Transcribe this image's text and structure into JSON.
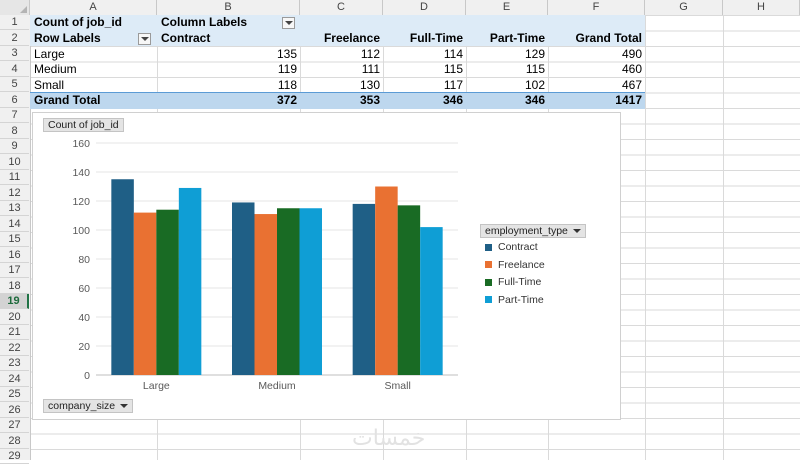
{
  "columns": [
    "A",
    "B",
    "C",
    "D",
    "E",
    "F",
    "G",
    "H"
  ],
  "rows": [
    "1",
    "2",
    "3",
    "4",
    "5",
    "6",
    "7",
    "8",
    "9",
    "10",
    "11",
    "12",
    "13",
    "14",
    "15",
    "16",
    "17",
    "18",
    "19",
    "20",
    "21",
    "22",
    "23",
    "24",
    "25",
    "26",
    "27",
    "28",
    "29"
  ],
  "active_row": "19",
  "pivot": {
    "values_label": "Count of job_id",
    "column_labels": "Column Labels",
    "row_labels": "Row Labels",
    "headers": [
      "Contract",
      "Freelance",
      "Full-Time",
      "Part-Time",
      "Grand Total"
    ],
    "rows": [
      {
        "label": "Large",
        "values": [
          "135",
          "112",
          "114",
          "129",
          "490"
        ]
      },
      {
        "label": "Medium",
        "values": [
          "119",
          "111",
          "115",
          "115",
          "460"
        ]
      },
      {
        "label": "Small",
        "values": [
          "118",
          "130",
          "117",
          "102",
          "467"
        ]
      }
    ],
    "total": {
      "label": "Grand Total",
      "values": [
        "372",
        "353",
        "346",
        "346",
        "1417"
      ]
    }
  },
  "chart": {
    "values_button": "Count of job_id",
    "axis_button": "company_size",
    "legend_button": "employment_type"
  },
  "chart_data": {
    "type": "bar",
    "categories": [
      "Large",
      "Medium",
      "Small"
    ],
    "series": [
      {
        "name": "Contract",
        "color": "#1f5f86",
        "values": [
          135,
          119,
          118
        ]
      },
      {
        "name": "Freelance",
        "color": "#e97132",
        "values": [
          112,
          111,
          130
        ]
      },
      {
        "name": "Full-Time",
        "color": "#196b24",
        "values": [
          114,
          115,
          117
        ]
      },
      {
        "name": "Part-Time",
        "color": "#0f9ed5",
        "values": [
          129,
          115,
          102
        ]
      }
    ],
    "ylim": [
      0,
      160
    ],
    "yticks": [
      "0",
      "20",
      "40",
      "60",
      "80",
      "100",
      "120",
      "140",
      "160"
    ],
    "grid": true,
    "legend": "right"
  },
  "watermark": "خمسات"
}
